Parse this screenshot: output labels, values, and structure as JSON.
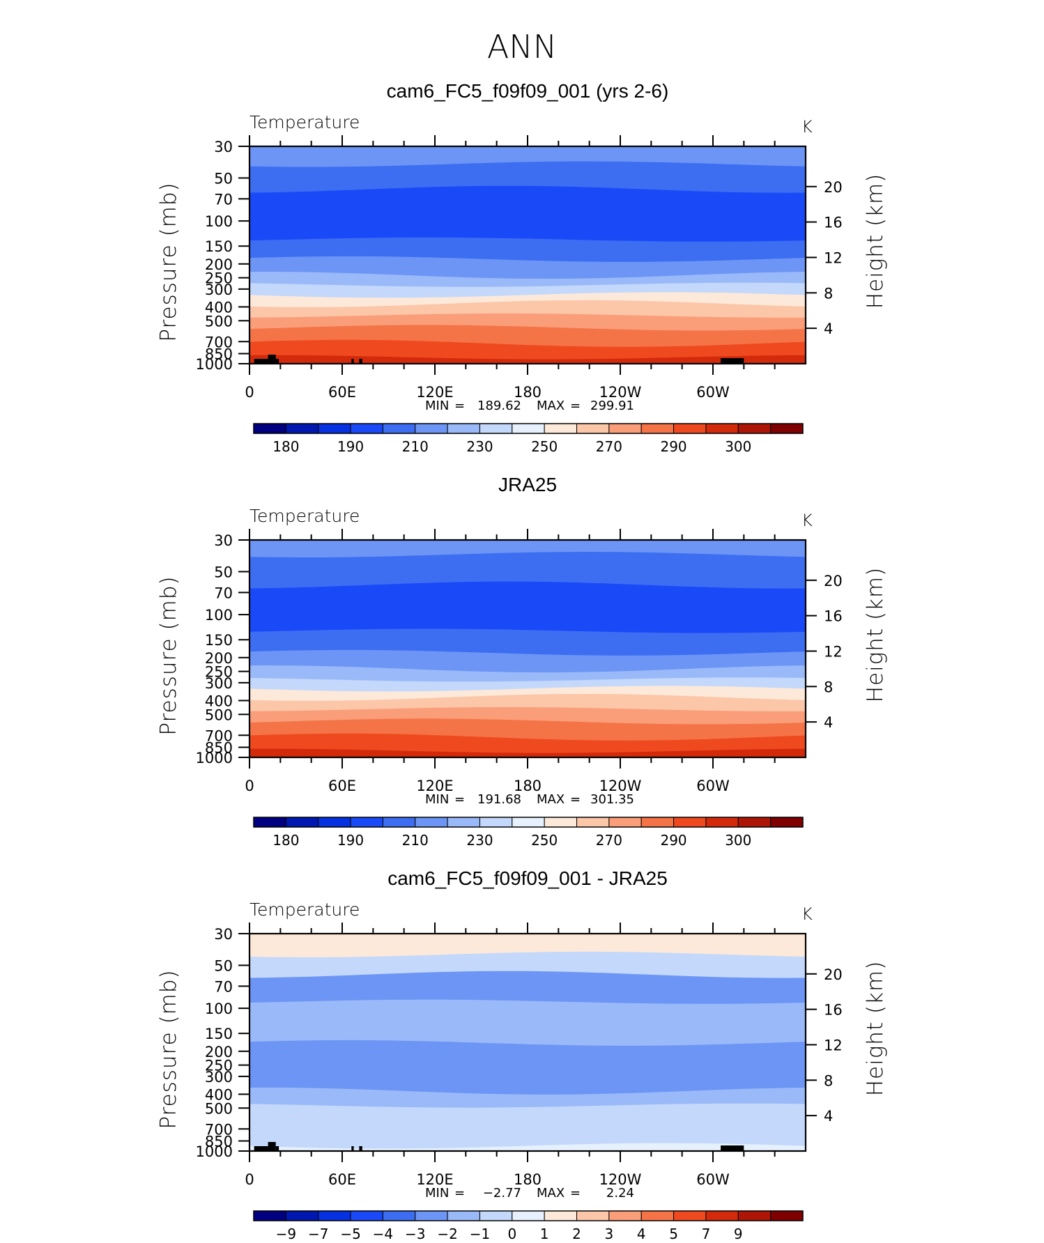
{
  "page": {
    "season": "ANN"
  },
  "chart_data": [
    {
      "type": "heatmap",
      "title": "cam6_FC5_f09f09_001 (yrs 2-6)",
      "variable": "Temperature",
      "units": "K",
      "ylabel": "Pressure (mb)",
      "ylabel2": "Height (km)",
      "x_ticks": [
        "0",
        "60E",
        "120E",
        "180",
        "120W",
        "60W"
      ],
      "y_ticks": [
        "30",
        "50",
        "70",
        "100",
        "150",
        "200",
        "250",
        "300",
        "400",
        "500",
        "700",
        "850",
        "1000"
      ],
      "y2_ticks": [
        "20",
        "16",
        "12",
        "8",
        "4"
      ],
      "stats": {
        "min_label": "MIN",
        "min": "189.62",
        "max_label": "MAX",
        "max": "299.91"
      },
      "colorbar": {
        "colors": [
          "#000080",
          "#0018b0",
          "#0531e0",
          "#1a4af8",
          "#3d6ef2",
          "#6c95f5",
          "#9ab9f8",
          "#c3d8fb",
          "#e6f1fd",
          "#fde9d9",
          "#fcc6a8",
          "#f99e79",
          "#f47448",
          "#ef4a1f",
          "#d32a0c",
          "#ad1606",
          "#7e0000"
        ],
        "labels": [
          "180",
          "190",
          "210",
          "230",
          "250",
          "270",
          "290",
          "300"
        ],
        "label_slots": [
          1,
          3,
          5,
          7,
          9,
          11,
          13,
          15
        ]
      },
      "levels": [
        {
          "p_top": 30,
          "p_bottom": 40,
          "color": "#6c95f5"
        },
        {
          "p_top": 40,
          "p_bottom": 60,
          "color": "#3d6ef2"
        },
        {
          "p_top": 60,
          "p_bottom": 135,
          "color": "#1a4af8"
        },
        {
          "p_top": 135,
          "p_bottom": 185,
          "color": "#3d6ef2"
        },
        {
          "p_top": 185,
          "p_bottom": 240,
          "color": "#6c95f5"
        },
        {
          "p_top": 240,
          "p_bottom": 280,
          "color": "#9ab9f8"
        },
        {
          "p_top": 280,
          "p_bottom": 330,
          "color": "#c3d8fb"
        },
        {
          "p_top": 330,
          "p_bottom": 380,
          "color": "#fde9d9"
        },
        {
          "p_top": 380,
          "p_bottom": 460,
          "color": "#fcc6a8"
        },
        {
          "p_top": 460,
          "p_bottom": 560,
          "color": "#f99e79"
        },
        {
          "p_top": 560,
          "p_bottom": 720,
          "color": "#f47448"
        },
        {
          "p_top": 720,
          "p_bottom": 900,
          "color": "#ef4a1f"
        },
        {
          "p_top": 900,
          "p_bottom": 1000,
          "color": "#d32a0c"
        }
      ]
    },
    {
      "type": "heatmap",
      "title": "JRA25",
      "variable": "Temperature",
      "units": "K",
      "ylabel": "Pressure (mb)",
      "ylabel2": "Height (km)",
      "x_ticks": [
        "0",
        "60E",
        "120E",
        "180",
        "120W",
        "60W"
      ],
      "y_ticks": [
        "30",
        "50",
        "70",
        "100",
        "150",
        "200",
        "250",
        "300",
        "400",
        "500",
        "700",
        "850",
        "1000"
      ],
      "y2_ticks": [
        "20",
        "16",
        "12",
        "8",
        "4"
      ],
      "stats": {
        "min_label": "MIN",
        "min": "191.68",
        "max_label": "MAX",
        "max": "301.35"
      },
      "colorbar": {
        "colors": [
          "#000080",
          "#0018b0",
          "#0531e0",
          "#1a4af8",
          "#3d6ef2",
          "#6c95f5",
          "#9ab9f8",
          "#c3d8fb",
          "#e6f1fd",
          "#fde9d9",
          "#fcc6a8",
          "#f99e79",
          "#f47448",
          "#ef4a1f",
          "#d32a0c",
          "#ad1606",
          "#7e0000"
        ],
        "labels": [
          "180",
          "190",
          "210",
          "230",
          "250",
          "270",
          "290",
          "300"
        ],
        "label_slots": [
          1,
          3,
          5,
          7,
          9,
          11,
          13,
          15
        ]
      },
      "levels": [
        {
          "p_top": 30,
          "p_bottom": 38,
          "color": "#6c95f5"
        },
        {
          "p_top": 38,
          "p_bottom": 62,
          "color": "#3d6ef2"
        },
        {
          "p_top": 62,
          "p_bottom": 130,
          "color": "#1a4af8"
        },
        {
          "p_top": 130,
          "p_bottom": 185,
          "color": "#3d6ef2"
        },
        {
          "p_top": 185,
          "p_bottom": 240,
          "color": "#6c95f5"
        },
        {
          "p_top": 240,
          "p_bottom": 285,
          "color": "#9ab9f8"
        },
        {
          "p_top": 285,
          "p_bottom": 330,
          "color": "#c3d8fb"
        },
        {
          "p_top": 330,
          "p_bottom": 380,
          "color": "#fde9d9"
        },
        {
          "p_top": 380,
          "p_bottom": 460,
          "color": "#fcc6a8"
        },
        {
          "p_top": 460,
          "p_bottom": 560,
          "color": "#f99e79"
        },
        {
          "p_top": 560,
          "p_bottom": 720,
          "color": "#f47448"
        },
        {
          "p_top": 720,
          "p_bottom": 900,
          "color": "#ef4a1f"
        },
        {
          "p_top": 900,
          "p_bottom": 1000,
          "color": "#d32a0c"
        }
      ]
    },
    {
      "type": "heatmap",
      "title": "cam6_FC5_f09f09_001 - JRA25",
      "variable": "Temperature",
      "units": "K",
      "ylabel": "Pressure (mb)",
      "ylabel2": "Height (km)",
      "x_ticks": [
        "0",
        "60E",
        "120E",
        "180",
        "120W",
        "60W"
      ],
      "y_ticks": [
        "30",
        "50",
        "70",
        "100",
        "150",
        "200",
        "250",
        "300",
        "400",
        "500",
        "700",
        "850",
        "1000"
      ],
      "y2_ticks": [
        "20",
        "16",
        "12",
        "8",
        "4"
      ],
      "stats": {
        "min_label": "MIN",
        "min": "−2.77",
        "max_label": "MAX",
        "max": "2.24"
      },
      "colorbar": {
        "colors": [
          "#000080",
          "#0018b0",
          "#0531e0",
          "#1a4af8",
          "#3d6ef2",
          "#6c95f5",
          "#9ab9f8",
          "#c3d8fb",
          "#e6f1fd",
          "#fde9d9",
          "#fcc6a8",
          "#f99e79",
          "#f47448",
          "#ef4a1f",
          "#d32a0c",
          "#ad1606",
          "#7e0000"
        ],
        "labels": [
          "−9",
          "−7",
          "−5",
          "−4",
          "−3",
          "−2",
          "−1",
          "0",
          "1",
          "2",
          "3",
          "4",
          "5",
          "7",
          "9"
        ],
        "label_slots": [
          1,
          2,
          3,
          4,
          5,
          6,
          7,
          8,
          9,
          10,
          11,
          12,
          13,
          14,
          15
        ]
      },
      "levels": [
        {
          "p_top": 30,
          "p_bottom": 42,
          "color": "#fde9d9"
        },
        {
          "p_top": 42,
          "p_bottom": 58,
          "color": "#c3d8fb"
        },
        {
          "p_top": 58,
          "p_bottom": 90,
          "color": "#6c95f5"
        },
        {
          "p_top": 90,
          "p_bottom": 175,
          "color": "#9ab9f8"
        },
        {
          "p_top": 175,
          "p_bottom": 380,
          "color": "#6c95f5"
        },
        {
          "p_top": 380,
          "p_bottom": 480,
          "color": "#9ab9f8"
        },
        {
          "p_top": 480,
          "p_bottom": 920,
          "color": "#c3d8fb"
        },
        {
          "p_top": 920,
          "p_bottom": 1000,
          "color": "#e6f1fd"
        }
      ]
    }
  ]
}
